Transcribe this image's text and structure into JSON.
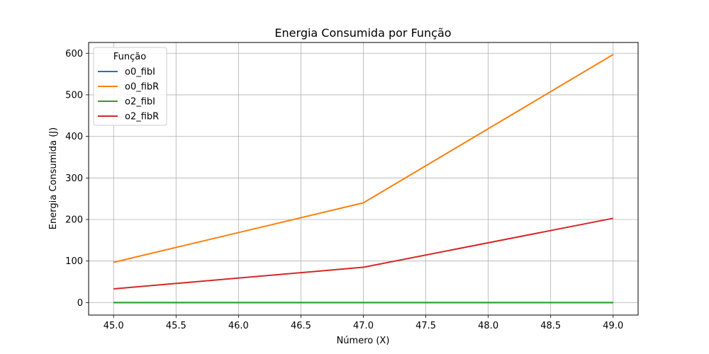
{
  "chart_data": {
    "type": "line",
    "title": "Energia Consumida por Função",
    "xlabel": "Número (X)",
    "ylabel": "Energia Consumida (J)",
    "xlim": [
      44.8,
      49.2
    ],
    "ylim": [
      -30,
      626
    ],
    "xticks": [
      45.0,
      45.5,
      46.0,
      46.5,
      47.0,
      47.5,
      48.0,
      48.5,
      49.0
    ],
    "xtick_labels": [
      "45.0",
      "45.5",
      "46.0",
      "46.5",
      "47.0",
      "47.5",
      "48.0",
      "48.5",
      "49.0"
    ],
    "yticks": [
      0,
      100,
      200,
      300,
      400,
      500,
      600
    ],
    "ytick_labels": [
      "0",
      "100",
      "200",
      "300",
      "400",
      "500",
      "600"
    ],
    "grid": true,
    "legend": {
      "title": "Função",
      "placement": "top-left"
    },
    "series": [
      {
        "name": "o0_fibI",
        "color": "#1f77b4",
        "x": [
          45,
          47,
          49
        ],
        "y": [
          0.01,
          0.01,
          0.01
        ]
      },
      {
        "name": "o0_fibR",
        "color": "#ff7f0e",
        "x": [
          45,
          47,
          49
        ],
        "y": [
          97,
          240,
          597
        ]
      },
      {
        "name": "o2_fibI",
        "color": "#2ca02c",
        "x": [
          45,
          47,
          49
        ],
        "y": [
          0.01,
          0.01,
          0.01
        ]
      },
      {
        "name": "o2_fibR",
        "color": "#d62728",
        "x": [
          45,
          47,
          49
        ],
        "y": [
          33,
          85,
          203
        ]
      }
    ]
  }
}
